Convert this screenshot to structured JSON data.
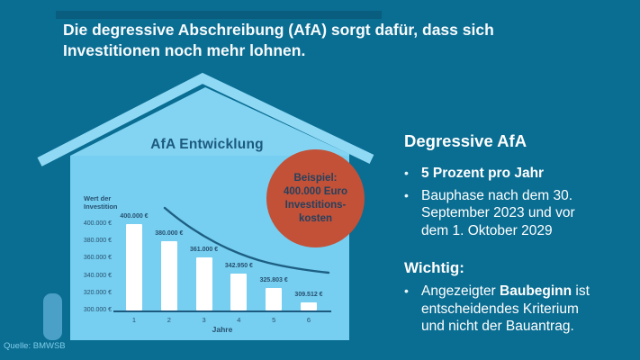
{
  "header": {
    "title_line1": "Die degressive Abschreibung (AfA) sorgt dafür, dass sich",
    "title_line2": "Investitionen noch mehr lohnen."
  },
  "badge": {
    "lines": [
      "Beispiel:",
      "400.000 Euro",
      "Investitions-",
      "kosten"
    ]
  },
  "chart_data": {
    "type": "bar",
    "title": "AfA Entwicklung",
    "ylabel": "Wert der Investition",
    "xlabel": "Jahre",
    "categories": [
      "1",
      "2",
      "3",
      "4",
      "5",
      "6"
    ],
    "values": [
      400000,
      380000,
      361000,
      342950,
      325803,
      309512
    ],
    "value_labels": [
      "400.000 €",
      "380.000 €",
      "361.000 €",
      "342.950 €",
      "325.803 €",
      "309.512 €"
    ],
    "ytick_values": [
      300000,
      320000,
      340000,
      360000,
      380000,
      400000
    ],
    "ytick_labels": [
      "300.000 €",
      "320.000 €",
      "340.000 €",
      "360.000 €",
      "380.000 €",
      "400.000 €"
    ],
    "ylim": [
      300000,
      400000
    ],
    "bar_color": "#ffffff",
    "grid": false,
    "legend": null,
    "annotations": [
      "declining exponential trend curve over bars"
    ]
  },
  "panel": {
    "heading": "Degressive AfA",
    "bullet_glyph": "•",
    "bullets": [
      {
        "text": "5 Prozent pro Jahr",
        "bold": true
      },
      {
        "text": "Bauphase nach dem 30. September 2023 und vor dem 1. Oktober 2029",
        "bold": false
      }
    ],
    "wichtig_heading": "Wichtig:",
    "wichtig_bullet": {
      "prefix": "Angezeigter ",
      "bold": "Baubeginn",
      "suffix": " ist entscheidendes Kriterium und nicht der Bauantrag."
    }
  },
  "source": {
    "label": "Quelle: BMWSB"
  },
  "colors": {
    "background": "#0a6d92",
    "header_accent": "#095d7e",
    "house_gable": "#83d4f2",
    "house_body": "#76cef0",
    "house_roof": "#8fd9f5",
    "door_pill": "#4aa0c6",
    "chart_navy": "#1d5a80",
    "bar_white": "#ffffff",
    "badge_red": "#c25138",
    "badge_text": "#25415e",
    "panel_text": "#ffffff",
    "source_text": "#7fcde8"
  }
}
